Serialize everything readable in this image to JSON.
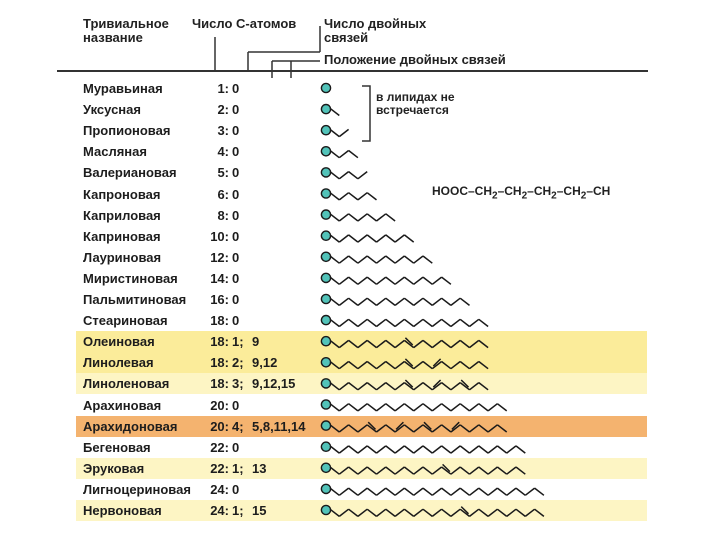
{
  "header": {
    "trivial_name_line1": "Тривиальное",
    "trivial_name_line2": "название",
    "carbon_count": "Число С-атомов",
    "double_bonds_line1": "Число двойных",
    "double_bonds_line2": "связей",
    "double_bond_positions": "Положение двойных связей"
  },
  "note": {
    "line1": "в липидах не",
    "line2": "встречается"
  },
  "formula": {
    "parts": [
      "HOOC",
      "–CH",
      "2",
      "–CH",
      "2",
      "–CH",
      "2",
      "–CH",
      "2",
      "–CH"
    ]
  },
  "colors": {
    "highlight_yellow": "#fbec9a",
    "highlight_yellow_light": "#fdf5c4",
    "highlight_orange": "#f4b36f",
    "head_fill": "#52c3b9",
    "chain": "#1a1a1a"
  },
  "acids": [
    {
      "name": "Муравьиная",
      "carbons": "1:",
      "double_bonds": "0",
      "positions": "",
      "c": 1,
      "db": [],
      "highlight": "none"
    },
    {
      "name": "Уксусная",
      "carbons": "2:",
      "double_bonds": "0",
      "positions": "",
      "c": 2,
      "db": [],
      "highlight": "none"
    },
    {
      "name": "Пропионовая",
      "carbons": "3:",
      "double_bonds": "0",
      "positions": "",
      "c": 3,
      "db": [],
      "highlight": "none"
    },
    {
      "name": "Масляная",
      "carbons": "4:",
      "double_bonds": "0",
      "positions": "",
      "c": 4,
      "db": [],
      "highlight": "none"
    },
    {
      "name": "Валериановая",
      "carbons": "5:",
      "double_bonds": "0",
      "positions": "",
      "c": 5,
      "db": [],
      "highlight": "none"
    },
    {
      "name": "Капроновая",
      "carbons": "6:",
      "double_bonds": "0",
      "positions": "",
      "c": 6,
      "db": [],
      "highlight": "none"
    },
    {
      "name": "Каприловая",
      "carbons": "8:",
      "double_bonds": "0",
      "positions": "",
      "c": 8,
      "db": [],
      "highlight": "none"
    },
    {
      "name": "Каприновая",
      "carbons": "10:",
      "double_bonds": "0",
      "positions": "",
      "c": 10,
      "db": [],
      "highlight": "none"
    },
    {
      "name": "Лауриновая",
      "carbons": "12:",
      "double_bonds": "0",
      "positions": "",
      "c": 12,
      "db": [],
      "highlight": "none"
    },
    {
      "name": "Миристиновая",
      "carbons": "14:",
      "double_bonds": "0",
      "positions": "",
      "c": 14,
      "db": [],
      "highlight": "none"
    },
    {
      "name": "Пальмитиновая",
      "carbons": "16:",
      "double_bonds": "0",
      "positions": "",
      "c": 16,
      "db": [],
      "highlight": "none"
    },
    {
      "name": "Стеариновая",
      "carbons": "18:",
      "double_bonds": "0",
      "positions": "",
      "c": 18,
      "db": [],
      "highlight": "none"
    },
    {
      "name": "Олеиновая",
      "carbons": "18:",
      "double_bonds": "1;",
      "positions": "9",
      "c": 18,
      "db": [
        9
      ],
      "highlight": "yellow"
    },
    {
      "name": "Линолевая",
      "carbons": "18:",
      "double_bonds": "2;",
      "positions": "9,12",
      "c": 18,
      "db": [
        9,
        12
      ],
      "highlight": "yellow"
    },
    {
      "name": "Линоленовая",
      "carbons": "18:",
      "double_bonds": "3;",
      "positions": "9,12,15",
      "c": 18,
      "db": [
        9,
        12,
        15
      ],
      "highlight": "yellow_light"
    },
    {
      "name": "Арахиновая",
      "carbons": "20:",
      "double_bonds": "0",
      "positions": "",
      "c": 20,
      "db": [],
      "highlight": "none"
    },
    {
      "name": "Арахидоновая",
      "carbons": "20:",
      "double_bonds": "4;",
      "positions": "5,8,11,14",
      "c": 20,
      "db": [
        5,
        8,
        11,
        14
      ],
      "highlight": "orange"
    },
    {
      "name": "Бегеновая",
      "carbons": "22:",
      "double_bonds": "0",
      "positions": "",
      "c": 22,
      "db": [],
      "highlight": "none"
    },
    {
      "name": "Эруковая",
      "carbons": "22:",
      "double_bonds": "1;",
      "positions": "13",
      "c": 22,
      "db": [
        13
      ],
      "highlight": "yellow_light"
    },
    {
      "name": "Лигноцериновая",
      "carbons": "24:",
      "double_bonds": "0",
      "positions": "",
      "c": 24,
      "db": [],
      "highlight": "none"
    },
    {
      "name": "Нервоновая",
      "carbons": "24:",
      "double_bonds": "1;",
      "positions": "15",
      "c": 24,
      "db": [
        15
      ],
      "highlight": "yellow_light"
    }
  ]
}
